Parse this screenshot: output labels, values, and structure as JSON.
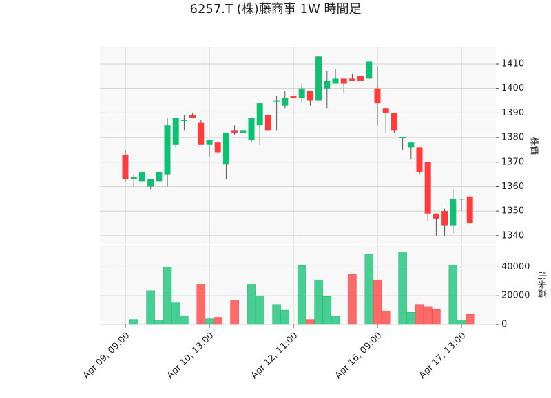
{
  "chart_data": {
    "type": "candlestick",
    "title": "6257.T (株)藤商事 1W 時間足",
    "y_label": "株価",
    "y2_label": "出来高",
    "up_color": "#0fbf72",
    "down_color": "#ff3b3b",
    "grid": true,
    "categories": [
      "Apr 09, 09:00",
      null,
      null,
      null,
      null,
      null,
      null,
      null,
      null,
      null,
      "Apr 10, 13:00",
      null,
      null,
      null,
      null,
      null,
      null,
      null,
      null,
      null,
      "Apr 12, 11:00",
      null,
      null,
      null,
      null,
      null,
      null,
      null,
      null,
      null,
      "Apr 16, 09:00",
      null,
      null,
      null,
      null,
      null,
      null,
      null,
      null,
      null,
      "Apr 17, 13:00",
      null
    ],
    "open": [
      1373,
      1363,
      1362,
      1360,
      1362,
      1365,
      1377,
      1387,
      1389,
      1386,
      1377,
      1378,
      1369,
      1383,
      1382,
      1379,
      1385,
      1389,
      1395,
      1393,
      1397,
      1396,
      1399,
      1395,
      1400,
      1402,
      1404,
      1404,
      1405,
      1404,
      1400,
      1392,
      1390,
      1380,
      1376,
      1376,
      1370,
      1349,
      1350,
      1344,
      1355,
      1356
    ],
    "high": [
      1375,
      1365,
      1366,
      1363,
      1366,
      1388,
      1388,
      1389,
      1390,
      1387,
      1379,
      1378,
      1382,
      1385,
      1383,
      1388,
      1394,
      1389,
      1397,
      1399,
      1397,
      1402,
      1399,
      1413,
      1407,
      1408,
      1404,
      1406,
      1405,
      1411,
      1409,
      1392,
      1390,
      1380,
      1378,
      1376,
      1370,
      1349,
      1351,
      1359,
      1355,
      1356
    ],
    "low": [
      1362,
      1360,
      1362,
      1359,
      1362,
      1360,
      1376,
      1383,
      1388,
      1377,
      1372,
      1374,
      1363,
      1381,
      1382,
      1378,
      1377,
      1383,
      1383,
      1392,
      1396,
      1394,
      1393,
      1395,
      1392,
      1402,
      1398,
      1403,
      1403,
      1404,
      1385,
      1382,
      1382,
      1375,
      1371,
      1365,
      1346,
      1340,
      1340,
      1341,
      1350,
      1345
    ],
    "close": [
      1363,
      1364,
      1366,
      1363,
      1366,
      1385,
      1388,
      1387,
      1388,
      1377,
      1379,
      1374,
      1382,
      1382,
      1383,
      1388,
      1394,
      1383,
      1395,
      1396,
      1396,
      1400,
      1395,
      1413,
      1403,
      1404,
      1402,
      1403,
      1403,
      1411,
      1394,
      1390,
      1383,
      1380,
      1378,
      1366,
      1349,
      1347,
      1344,
      1355,
      1355,
      1345
    ],
    "volume": [
      0,
      3500,
      0,
      23500,
      3000,
      40000,
      15000,
      6000,
      0,
      28000,
      4000,
      5000,
      0,
      17000,
      0,
      28000,
      20000,
      0,
      14000,
      10000,
      0,
      41000,
      3500,
      31000,
      19500,
      6000,
      0,
      35000,
      0,
      49000,
      31000,
      9500,
      0,
      50000,
      8500,
      14000,
      12500,
      10500,
      0,
      41500,
      3000,
      7000
    ],
    "ylim": [
      1336.6,
      1417
    ],
    "yticks": [
      1340,
      1350,
      1360,
      1370,
      1380,
      1390,
      1400,
      1410
    ],
    "y2lim": [
      0,
      55000
    ],
    "y2ticks": [
      0,
      20000,
      40000
    ]
  }
}
